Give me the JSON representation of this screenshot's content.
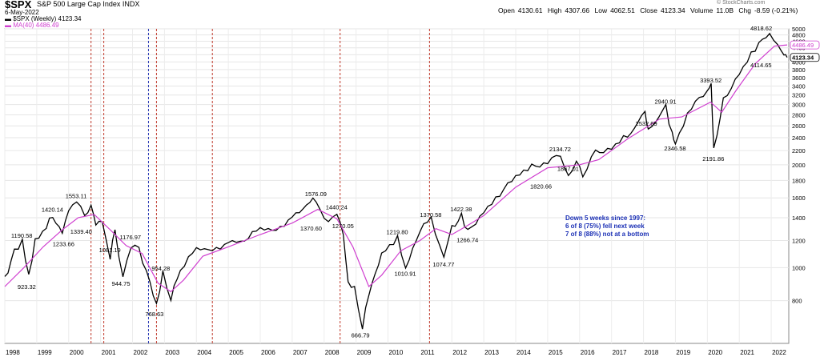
{
  "header": {
    "symbol": "$SPX",
    "description": "S&P 500 Large Cap Index INDX",
    "date": "6-May-2022",
    "legend_price": "$SPX (Weekly) 4123.34",
    "legend_ma": "MA(40) 4486.49",
    "source": "© StockCharts.com",
    "open_label": "Open",
    "open": "4130.61",
    "high_label": "High",
    "high": "4307.66",
    "low_label": "Low",
    "low": "4062.51",
    "close_label": "Close",
    "close": "4123.34",
    "volume_label": "Volume",
    "volume": "11.0B",
    "chg_label": "Chg",
    "chg": "-8.59 (-0.21%)"
  },
  "annotation": {
    "line1": "Down 5 weeks since 1997:",
    "line2": "6 of 8 (75%) fell next week",
    "line3": "7 of 8 (88%) not at a bottom"
  },
  "colors": {
    "price": "#000000",
    "ma": "#d040d0",
    "red_line": "#c0392b",
    "blue_line": "#2030b0",
    "annotation": "#1a2fb5"
  },
  "chart_data": {
    "type": "line",
    "y_scale": "log",
    "ylim": [
      600,
      5000
    ],
    "xlim": [
      1998.0,
      2022.55
    ],
    "y_ticks": [
      800,
      1000,
      1200,
      1400,
      1600,
      1800,
      2000,
      2200,
      2400,
      2600,
      2800,
      3000,
      3200,
      3400,
      3600,
      3800,
      4000,
      4200,
      4400,
      4600,
      4800,
      5000
    ],
    "x_tick_labels": [
      "1998",
      "1999",
      "2000",
      "2001",
      "2002",
      "2003",
      "2004",
      "2005",
      "2006",
      "2007",
      "2008",
      "2009",
      "2010",
      "2011",
      "2012",
      "2013",
      "2014",
      "2015",
      "2016",
      "2017",
      "2018",
      "2019",
      "2020",
      "2021",
      "2022"
    ],
    "price_label": "4123.34",
    "ma_label": "4486.49",
    "series": [
      {
        "name": "$SPX (Weekly)",
        "points": [
          [
            1998.0,
            940
          ],
          [
            1998.3,
            1110
          ],
          [
            1998.55,
            1190
          ],
          [
            1998.75,
            930
          ],
          [
            1998.95,
            1180
          ],
          [
            1999.3,
            1330
          ],
          [
            1999.5,
            1420
          ],
          [
            1999.8,
            1240
          ],
          [
            2000.0,
            1460
          ],
          [
            2000.25,
            1553
          ],
          [
            2000.5,
            1400
          ],
          [
            2000.7,
            1520
          ],
          [
            2000.85,
            1340
          ],
          [
            2001.05,
            1370
          ],
          [
            2001.3,
            1081
          ],
          [
            2001.45,
            1290
          ],
          [
            2001.7,
            944
          ],
          [
            2001.95,
            1177
          ],
          [
            2002.2,
            1150
          ],
          [
            2002.55,
            900
          ],
          [
            2002.75,
            768
          ],
          [
            2002.95,
            950
          ],
          [
            2003.2,
            800
          ],
          [
            2003.5,
            1000
          ],
          [
            2004.0,
            1130
          ],
          [
            2004.5,
            1100
          ],
          [
            2005.0,
            1200
          ],
          [
            2005.5,
            1220
          ],
          [
            2006.0,
            1290
          ],
          [
            2006.5,
            1260
          ],
          [
            2007.0,
            1430
          ],
          [
            2007.45,
            1530
          ],
          [
            2007.75,
            1576
          ],
          [
            2008.0,
            1370
          ],
          [
            2008.4,
            1440
          ],
          [
            2008.6,
            1270
          ],
          [
            2008.75,
            900
          ],
          [
            2008.95,
            860
          ],
          [
            2009.2,
            667
          ],
          [
            2009.5,
            920
          ],
          [
            2009.8,
            1080
          ],
          [
            2010.3,
            1220
          ],
          [
            2010.55,
            1010
          ],
          [
            2011.0,
            1300
          ],
          [
            2011.35,
            1370
          ],
          [
            2011.75,
            1075
          ],
          [
            2012.0,
            1300
          ],
          [
            2012.3,
            1422
          ],
          [
            2012.5,
            1267
          ],
          [
            2013.0,
            1480
          ],
          [
            2013.5,
            1650
          ],
          [
            2014.0,
            1820
          ],
          [
            2014.5,
            1970
          ],
          [
            2015.0,
            2060
          ],
          [
            2015.4,
            2135
          ],
          [
            2015.65,
            1867
          ],
          [
            2015.9,
            2080
          ],
          [
            2016.1,
            1850
          ],
          [
            2016.5,
            2170
          ],
          [
            2017.0,
            2270
          ],
          [
            2017.5,
            2450
          ],
          [
            2018.05,
            2860
          ],
          [
            2018.15,
            2600
          ],
          [
            2018.7,
            2940
          ],
          [
            2018.9,
            2450
          ],
          [
            2019.0,
            2350
          ],
          [
            2019.5,
            2950
          ],
          [
            2020.0,
            3230
          ],
          [
            2020.12,
            3393
          ],
          [
            2020.2,
            2192
          ],
          [
            2020.5,
            3100
          ],
          [
            2021.0,
            3750
          ],
          [
            2021.5,
            4350
          ],
          [
            2021.95,
            4818
          ],
          [
            2022.2,
            4400
          ],
          [
            2022.4,
            4114
          ],
          [
            2022.5,
            4123
          ]
        ]
      },
      {
        "name": "MA(40)",
        "points": [
          [
            1998.0,
            880
          ],
          [
            1998.6,
            1000
          ],
          [
            1999.2,
            1150
          ],
          [
            1999.8,
            1290
          ],
          [
            2000.3,
            1400
          ],
          [
            2000.8,
            1430
          ],
          [
            2001.3,
            1290
          ],
          [
            2001.8,
            1160
          ],
          [
            2002.3,
            1100
          ],
          [
            2002.8,
            900
          ],
          [
            2003.2,
            850
          ],
          [
            2003.6,
            920
          ],
          [
            2004.2,
            1080
          ],
          [
            2005.0,
            1150
          ],
          [
            2006.0,
            1250
          ],
          [
            2007.0,
            1350
          ],
          [
            2007.8,
            1480
          ],
          [
            2008.4,
            1390
          ],
          [
            2008.9,
            1150
          ],
          [
            2009.4,
            880
          ],
          [
            2009.8,
            950
          ],
          [
            2010.4,
            1120
          ],
          [
            2011.0,
            1200
          ],
          [
            2011.5,
            1300
          ],
          [
            2012.0,
            1250
          ],
          [
            2012.5,
            1330
          ],
          [
            2013.0,
            1420
          ],
          [
            2014.0,
            1720
          ],
          [
            2015.0,
            1960
          ],
          [
            2016.0,
            2000
          ],
          [
            2016.6,
            2070
          ],
          [
            2017.5,
            2380
          ],
          [
            2018.5,
            2720
          ],
          [
            2019.2,
            2760
          ],
          [
            2020.1,
            3050
          ],
          [
            2020.45,
            2850
          ],
          [
            2020.9,
            3300
          ],
          [
            2021.5,
            3950
          ],
          [
            2022.1,
            4450
          ],
          [
            2022.5,
            4486
          ]
        ]
      }
    ],
    "peak_labels": [
      {
        "x": 1998.55,
        "y": 1190.58,
        "label": "1190.58"
      },
      {
        "x": 1998.75,
        "y": 923.32,
        "label": "923.32"
      },
      {
        "x": 1999.5,
        "y": 1420.14,
        "label": "1420.14"
      },
      {
        "x": 1999.85,
        "y": 1233.66,
        "label": "1233.66"
      },
      {
        "x": 2000.25,
        "y": 1553.11,
        "label": "1553.11"
      },
      {
        "x": 2000.4,
        "y": 1339.4,
        "label": "1339.40"
      },
      {
        "x": 2001.3,
        "y": 1081.19,
        "label": "1081.19"
      },
      {
        "x": 2001.7,
        "y": 944.75,
        "label": "944.75"
      },
      {
        "x": 2001.95,
        "y": 1176.97,
        "label": "1176.97"
      },
      {
        "x": 2002.95,
        "y": 954.28,
        "label": "954.28"
      },
      {
        "x": 2002.75,
        "y": 768.63,
        "label": "768.63"
      },
      {
        "x": 2007.75,
        "y": 1576.09,
        "label": "1576.09"
      },
      {
        "x": 2007.6,
        "y": 1370.6,
        "label": "1370.60"
      },
      {
        "x": 2008.4,
        "y": 1440.24,
        "label": "1440.24"
      },
      {
        "x": 2008.6,
        "y": 1270.05,
        "label": "1270.05"
      },
      {
        "x": 2009.2,
        "y": 666.79,
        "label": "666.79"
      },
      {
        "x": 2010.3,
        "y": 1219.8,
        "label": "1219.80"
      },
      {
        "x": 2010.55,
        "y": 1010.91,
        "label": "1010.91"
      },
      {
        "x": 2011.35,
        "y": 1370.58,
        "label": "1370.58"
      },
      {
        "x": 2011.75,
        "y": 1074.77,
        "label": "1074.77"
      },
      {
        "x": 2012.3,
        "y": 1422.38,
        "label": "1422.38"
      },
      {
        "x": 2012.5,
        "y": 1266.74,
        "label": "1266.74"
      },
      {
        "x": 2015.4,
        "y": 2134.72,
        "label": "2134.72"
      },
      {
        "x": 2014.8,
        "y": 1820.66,
        "label": "1820.66"
      },
      {
        "x": 2015.65,
        "y": 1867.01,
        "label": "1867.01"
      },
      {
        "x": 2018.7,
        "y": 2940.91,
        "label": "2940.91"
      },
      {
        "x": 2018.1,
        "y": 2532.69,
        "label": "2532.69"
      },
      {
        "x": 2019.0,
        "y": 2346.58,
        "label": "2346.58"
      },
      {
        "x": 2020.12,
        "y": 3393.52,
        "label": "3393.52"
      },
      {
        "x": 2020.2,
        "y": 2191.86,
        "label": "2191.86"
      },
      {
        "x": 2021.95,
        "y": 4818.62,
        "label": "4818.62"
      },
      {
        "x": 2022.4,
        "y": 4114.65,
        "label": "4114.65"
      }
    ],
    "vertical_markers": [
      {
        "x": 2000.7,
        "color": "red"
      },
      {
        "x": 2001.1,
        "color": "red"
      },
      {
        "x": 2002.5,
        "color": "blue"
      },
      {
        "x": 2002.75,
        "color": "red"
      },
      {
        "x": 2004.5,
        "color": "red"
      },
      {
        "x": 2008.5,
        "color": "red"
      },
      {
        "x": 2011.3,
        "color": "red"
      }
    ]
  }
}
